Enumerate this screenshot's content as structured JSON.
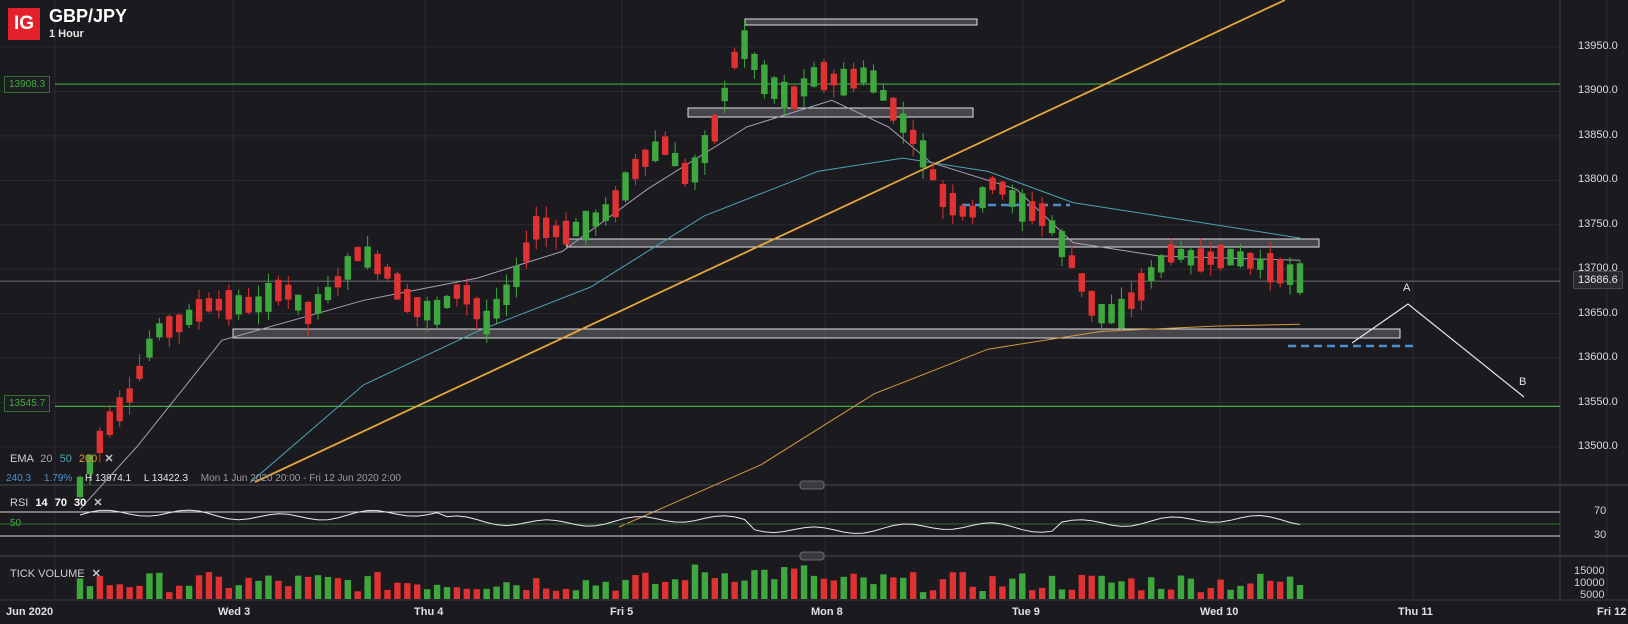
{
  "header": {
    "logo": "IG",
    "instrument": "GBP/JPY",
    "timeframe": "1 Hour"
  },
  "colors": {
    "background": "#1b1b1f",
    "up": "#3ea83e",
    "down": "#e03232",
    "support_line": "#3fae3f",
    "trend_line": "#e5a63b",
    "ema20": "#a79fb6",
    "ema50": "#4aa3b6",
    "ema200": "#d49a3a",
    "dashed": "#4c8fd0"
  },
  "price_axis": {
    "labels": [
      "13950.0",
      "13900.0",
      "13850.0",
      "13800.0",
      "13750.0",
      "13700.0",
      "13650.0",
      "13600.0",
      "13550.0",
      "13500.0"
    ],
    "current_price": "13686.6",
    "level_labels": {
      "upper": "13908.3",
      "lower": "13545.7"
    }
  },
  "indicators": {
    "ema": {
      "label": "EMA",
      "periods": [
        "20",
        "50",
        "200"
      ],
      "close": "✕"
    },
    "stats": {
      "value": "240.3",
      "pct": "1.79%",
      "high": "H 13974.1",
      "low": "L 13422.3",
      "range": "Mon 1 Jun 2020 20:00 - Fri 12 Jun 2020 2:00"
    },
    "rsi": {
      "label": "RSI",
      "params": [
        "14",
        "70",
        "30"
      ],
      "close": "✕",
      "levels": [
        "70",
        "30"
      ],
      "mid": "50"
    },
    "volume": {
      "label": "TICK VOLUME",
      "close": "✕",
      "levels": [
        "15000",
        "10000",
        "5000"
      ]
    }
  },
  "time_axis": {
    "labels": [
      "Jun 2020",
      "Wed 3",
      "Thu 4",
      "Fri 5",
      "Mon 8",
      "Tue 9",
      "Wed 10",
      "Thu 11",
      "Fri 12"
    ]
  },
  "annotations": {
    "wave_a": "A",
    "wave_b": "B"
  },
  "chart_data": {
    "type": "candlestick",
    "timeframe": "1 Hour",
    "ylim": [
      13422.3,
      13974.1
    ],
    "levels": [
      13908.3,
      13545.7
    ],
    "ohlc_waypoints": [
      [
        13460,
        13470,
        13440,
        13455
      ],
      [
        13480,
        13530,
        13470,
        13520
      ],
      [
        13520,
        13580,
        13510,
        13560
      ],
      [
        13570,
        13660,
        13560,
        13630
      ],
      [
        13640,
        13660,
        13620,
        13640
      ],
      [
        13650,
        13690,
        13630,
        13660
      ],
      [
        13690,
        13710,
        13640,
        13660
      ],
      [
        13670,
        13690,
        13640,
        13660
      ],
      [
        13670,
        13700,
        13650,
        13680
      ],
      [
        13680,
        13700,
        13640,
        13650
      ],
      [
        13650,
        13690,
        13640,
        13680
      ],
      [
        13700,
        13740,
        13690,
        13720
      ],
      [
        13710,
        13730,
        13690,
        13700
      ],
      [
        13690,
        13710,
        13640,
        13660
      ],
      [
        13650,
        13670,
        13630,
        13650
      ],
      [
        13660,
        13700,
        13640,
        13680
      ],
      [
        13660,
        13690,
        13630,
        13640
      ],
      [
        13650,
        13690,
        13600,
        13680
      ],
      [
        13690,
        13770,
        13670,
        13750
      ],
      [
        13750,
        13780,
        13730,
        13740
      ],
      [
        13740,
        13770,
        13720,
        13750
      ],
      [
        13760,
        13790,
        13740,
        13770
      ],
      [
        13780,
        13840,
        13760,
        13820
      ],
      [
        13830,
        13860,
        13800,
        13840
      ],
      [
        13800,
        13840,
        13780,
        13800
      ],
      [
        13810,
        13870,
        13790,
        13860
      ],
      [
        13860,
        13980,
        13850,
        13960
      ],
      [
        13950,
        13970,
        13900,
        13910
      ],
      [
        13900,
        13920,
        13880,
        13890
      ],
      [
        13900,
        13930,
        13880,
        13920
      ],
      [
        13930,
        13960,
        13900,
        13910
      ],
      [
        13910,
        13930,
        13890,
        13920
      ],
      [
        13910,
        13920,
        13860,
        13880
      ],
      [
        13870,
        13890,
        13830,
        13840
      ],
      [
        13830,
        13840,
        13760,
        13780
      ],
      [
        13780,
        13800,
        13750,
        13760
      ],
      [
        13780,
        13820,
        13760,
        13800
      ],
      [
        13800,
        13830,
        13760,
        13770
      ],
      [
        13760,
        13790,
        13740,
        13760
      ],
      [
        13750,
        13760,
        13720,
        13710
      ],
      [
        13700,
        13720,
        13640,
        13650
      ],
      [
        13640,
        13660,
        13630,
        13650
      ],
      [
        13660,
        13700,
        13650,
        13690
      ],
      [
        13700,
        13740,
        13690,
        13720
      ],
      [
        13720,
        13740,
        13700,
        13710
      ],
      [
        13715,
        13735,
        13700,
        13715
      ],
      [
        13720,
        13740,
        13700,
        13710
      ],
      [
        13700,
        13710,
        13690,
        13700
      ],
      [
        13700,
        13720,
        13680,
        13690
      ]
    ],
    "ema20_waypoints": [
      [
        0,
        13430
      ],
      [
        0.04,
        13500
      ],
      [
        0.1,
        13620
      ],
      [
        0.2,
        13665
      ],
      [
        0.28,
        13690
      ],
      [
        0.34,
        13720
      ],
      [
        0.4,
        13790
      ],
      [
        0.47,
        13860
      ],
      [
        0.53,
        13890
      ],
      [
        0.57,
        13860
      ],
      [
        0.6,
        13820
      ],
      [
        0.66,
        13790
      ],
      [
        0.7,
        13730
      ],
      [
        0.76,
        13715
      ],
      [
        0.82,
        13712
      ],
      [
        0.86,
        13710
      ]
    ],
    "ema50_waypoints": [
      [
        0.12,
        13460
      ],
      [
        0.2,
        13570
      ],
      [
        0.28,
        13630
      ],
      [
        0.36,
        13680
      ],
      [
        0.44,
        13760
      ],
      [
        0.52,
        13810
      ],
      [
        0.58,
        13825
      ],
      [
        0.64,
        13810
      ],
      [
        0.7,
        13775
      ],
      [
        0.78,
        13755
      ],
      [
        0.86,
        13735
      ]
    ],
    "ema200_waypoints": [
      [
        0.38,
        13410
      ],
      [
        0.48,
        13480
      ],
      [
        0.56,
        13560
      ],
      [
        0.64,
        13610
      ],
      [
        0.72,
        13630
      ],
      [
        0.8,
        13636
      ],
      [
        0.86,
        13638
      ]
    ],
    "rsi": {
      "levels": [
        70,
        30
      ],
      "mid": 50
    },
    "volume": {
      "ylim": [
        0,
        15000
      ]
    }
  }
}
